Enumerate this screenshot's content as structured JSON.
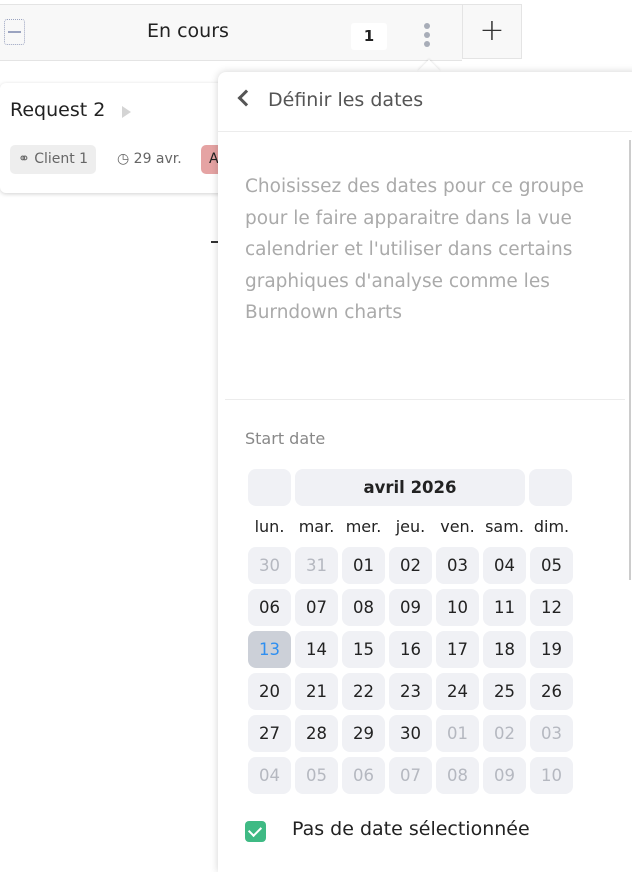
{
  "column": {
    "title": "En cours",
    "count": "1",
    "add_label": "+"
  },
  "card": {
    "title": "Request 2",
    "client": "Client 1",
    "due": "29 avr.",
    "tag": "A"
  },
  "panel": {
    "title": "Définir les dates",
    "description": "Choisissez des dates pour ce groupe pour le faire apparaitre dans la vue calendrier et l'utiliser dans certains graphiques d'analyse comme les Burndown charts",
    "start_label": "Start date",
    "calendar": {
      "month": "avril 2026",
      "weekdays": [
        "lun.",
        "mar.",
        "mer.",
        "jeu.",
        "ven.",
        "sam.",
        "dim."
      ],
      "today": "13",
      "weeks": [
        [
          [
            "30",
            true
          ],
          [
            "31",
            true
          ],
          [
            "01",
            false
          ],
          [
            "02",
            false
          ],
          [
            "03",
            false
          ],
          [
            "04",
            false
          ],
          [
            "05",
            false
          ]
        ],
        [
          [
            "06",
            false
          ],
          [
            "07",
            false
          ],
          [
            "08",
            false
          ],
          [
            "09",
            false
          ],
          [
            "10",
            false
          ],
          [
            "11",
            false
          ],
          [
            "12",
            false
          ]
        ],
        [
          [
            "13",
            false
          ],
          [
            "14",
            false
          ],
          [
            "15",
            false
          ],
          [
            "16",
            false
          ],
          [
            "17",
            false
          ],
          [
            "18",
            false
          ],
          [
            "19",
            false
          ]
        ],
        [
          [
            "20",
            false
          ],
          [
            "21",
            false
          ],
          [
            "22",
            false
          ],
          [
            "23",
            false
          ],
          [
            "24",
            false
          ],
          [
            "25",
            false
          ],
          [
            "26",
            false
          ]
        ],
        [
          [
            "27",
            false
          ],
          [
            "28",
            false
          ],
          [
            "29",
            false
          ],
          [
            "30",
            false
          ],
          [
            "01",
            true
          ],
          [
            "02",
            true
          ],
          [
            "03",
            true
          ]
        ],
        [
          [
            "04",
            true
          ],
          [
            "05",
            true
          ],
          [
            "06",
            true
          ],
          [
            "07",
            true
          ],
          [
            "08",
            true
          ],
          [
            "09",
            true
          ],
          [
            "10",
            true
          ]
        ]
      ]
    },
    "no_date_label": "Pas de date sélectionnée",
    "no_date_checked": true
  },
  "colors": {
    "accent": "#3fba84",
    "today": "#2f8ff0",
    "tag": "#e5a3a3"
  }
}
